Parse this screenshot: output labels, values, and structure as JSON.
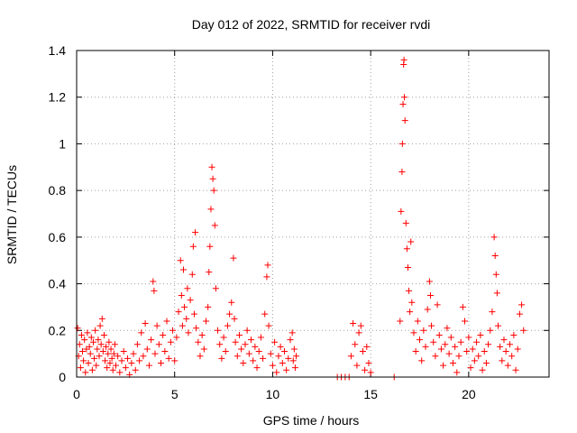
{
  "chart_data": {
    "type": "scatter",
    "title": "Day 012 of 2022, SRMTID for receiver rvdi",
    "xlabel": "GPS time / hours",
    "ylabel": "SRMTID / TECUs",
    "xlim": [
      0,
      24.1
    ],
    "ylim": [
      0,
      1.4
    ],
    "xticks": [
      0,
      5,
      10,
      15,
      20
    ],
    "xtick_labels": [
      "0",
      "5",
      "10",
      "15",
      "20"
    ],
    "yticks": [
      0,
      0.2,
      0.4,
      0.6,
      0.8,
      1,
      1.2,
      1.4
    ],
    "ytick_labels": [
      "0",
      "0.2",
      "0.4",
      "0.6",
      "0.8",
      "1",
      "1.2",
      "1.4"
    ],
    "grid": true,
    "marker": "+",
    "color": "#ff0000",
    "series": [
      {
        "name": "SRMTID",
        "points": [
          [
            0.05,
            0.21
          ],
          [
            0.1,
            0.09
          ],
          [
            0.15,
            0.14
          ],
          [
            0.2,
            0.04
          ],
          [
            0.25,
            0.18
          ],
          [
            0.3,
            0.11
          ],
          [
            0.35,
            0.07
          ],
          [
            0.4,
            0.16
          ],
          [
            0.45,
            0.02
          ],
          [
            0.5,
            0.12
          ],
          [
            0.55,
            0.19
          ],
          [
            0.6,
            0.06
          ],
          [
            0.65,
            0.13
          ],
          [
            0.7,
            0.1
          ],
          [
            0.75,
            0.17
          ],
          [
            0.8,
            0.03
          ],
          [
            0.85,
            0.15
          ],
          [
            0.9,
            0.08
          ],
          [
            0.95,
            0.2
          ],
          [
            1.0,
            0.05
          ],
          [
            1.05,
            0.12
          ],
          [
            1.1,
            0.16
          ],
          [
            1.15,
            0.09
          ],
          [
            1.2,
            0.22
          ],
          [
            1.25,
            0.14
          ],
          [
            1.3,
            0.25
          ],
          [
            1.35,
            0.11
          ],
          [
            1.4,
            0.18
          ],
          [
            1.45,
            0.07
          ],
          [
            1.5,
            0.13
          ],
          [
            1.55,
            0.04
          ],
          [
            1.6,
            0.1
          ],
          [
            1.65,
            0.15
          ],
          [
            1.7,
            0.06
          ],
          [
            1.75,
            0.12
          ],
          [
            1.8,
            0.08
          ],
          [
            1.85,
            0.03
          ],
          [
            1.9,
            0.1
          ],
          [
            1.95,
            0.14
          ],
          [
            2.0,
            0.05
          ],
          [
            2.1,
            0.09
          ],
          [
            2.2,
            0.02
          ],
          [
            2.3,
            0.07
          ],
          [
            2.4,
            0.11
          ],
          [
            2.5,
            0.04
          ],
          [
            2.6,
            0.08
          ],
          [
            2.7,
            0.01
          ],
          [
            2.8,
            0.06
          ],
          [
            2.9,
            0.1
          ],
          [
            3.0,
            0.03
          ],
          [
            3.1,
            0.14
          ],
          [
            3.2,
            0.07
          ],
          [
            3.3,
            0.19
          ],
          [
            3.4,
            0.09
          ],
          [
            3.5,
            0.23
          ],
          [
            3.6,
            0.12
          ],
          [
            3.7,
            0.05
          ],
          [
            3.8,
            0.16
          ],
          [
            3.9,
            0.41
          ],
          [
            3.95,
            0.37
          ],
          [
            4.0,
            0.1
          ],
          [
            4.1,
            0.22
          ],
          [
            4.2,
            0.14
          ],
          [
            4.3,
            0.06
          ],
          [
            4.4,
            0.18
          ],
          [
            4.5,
            0.11
          ],
          [
            4.6,
            0.24
          ],
          [
            4.7,
            0.08
          ],
          [
            4.8,
            0.15
          ],
          [
            4.9,
            0.2
          ],
          [
            5.0,
            0.07
          ],
          [
            5.1,
            0.17
          ],
          [
            5.2,
            0.28
          ],
          [
            5.3,
            0.5
          ],
          [
            5.35,
            0.35
          ],
          [
            5.4,
            0.22
          ],
          [
            5.45,
            0.46
          ],
          [
            5.5,
            0.3
          ],
          [
            5.6,
            0.25
          ],
          [
            5.65,
            0.38
          ],
          [
            5.7,
            0.19
          ],
          [
            5.8,
            0.33
          ],
          [
            5.9,
            0.44
          ],
          [
            5.95,
            0.56
          ],
          [
            6.0,
            0.27
          ],
          [
            6.05,
            0.62
          ],
          [
            6.1,
            0.21
          ],
          [
            6.2,
            0.15
          ],
          [
            6.3,
            0.09
          ],
          [
            6.4,
            0.18
          ],
          [
            6.5,
            0.12
          ],
          [
            6.6,
            0.24
          ],
          [
            6.7,
            0.3
          ],
          [
            6.75,
            0.45
          ],
          [
            6.8,
            0.56
          ],
          [
            6.85,
            0.72
          ],
          [
            6.9,
            0.9
          ],
          [
            6.95,
            0.85
          ],
          [
            7.0,
            0.8
          ],
          [
            7.05,
            0.65
          ],
          [
            7.1,
            0.38
          ],
          [
            7.2,
            0.2
          ],
          [
            7.3,
            0.14
          ],
          [
            7.4,
            0.08
          ],
          [
            7.5,
            0.17
          ],
          [
            7.6,
            0.11
          ],
          [
            7.7,
            0.22
          ],
          [
            7.8,
            0.27
          ],
          [
            7.9,
            0.32
          ],
          [
            8.0,
            0.51
          ],
          [
            8.05,
            0.25
          ],
          [
            8.1,
            0.15
          ],
          [
            8.2,
            0.09
          ],
          [
            8.3,
            0.18
          ],
          [
            8.4,
            0.12
          ],
          [
            8.5,
            0.06
          ],
          [
            8.6,
            0.14
          ],
          [
            8.7,
            0.2
          ],
          [
            8.8,
            0.1
          ],
          [
            8.9,
            0.16
          ],
          [
            9.0,
            0.07
          ],
          [
            9.1,
            0.13
          ],
          [
            9.2,
            0.04
          ],
          [
            9.3,
            0.11
          ],
          [
            9.4,
            0.17
          ],
          [
            9.5,
            0.08
          ],
          [
            9.6,
            0.27
          ],
          [
            9.7,
            0.43
          ],
          [
            9.75,
            0.48
          ],
          [
            9.8,
            0.22
          ],
          [
            9.9,
            0.1
          ],
          [
            10.0,
            0.05
          ],
          [
            10.1,
            0.15
          ],
          [
            10.2,
            0.02
          ],
          [
            10.3,
            0.09
          ],
          [
            10.4,
            0.13
          ],
          [
            10.5,
            0.06
          ],
          [
            10.6,
            0.11
          ],
          [
            10.7,
            0.03
          ],
          [
            10.8,
            0.08
          ],
          [
            10.9,
            0.16
          ],
          [
            11.0,
            0.19
          ],
          [
            11.05,
            0.07
          ],
          [
            11.1,
            0.12
          ],
          [
            11.15,
            0.04
          ],
          [
            11.2,
            0.09
          ],
          [
            13.3,
            0.0
          ],
          [
            13.5,
            0.0
          ],
          [
            13.7,
            0.0
          ],
          [
            13.9,
            0.0
          ],
          [
            14.0,
            0.09
          ],
          [
            14.1,
            0.23
          ],
          [
            14.2,
            0.14
          ],
          [
            14.3,
            0.05
          ],
          [
            14.4,
            0.19
          ],
          [
            14.5,
            0.22
          ],
          [
            14.6,
            0.11
          ],
          [
            14.7,
            0.03
          ],
          [
            14.8,
            0.13
          ],
          [
            14.9,
            0.06
          ],
          [
            15.0,
            0.02
          ],
          [
            16.2,
            0.0
          ],
          [
            16.5,
            0.24
          ],
          [
            16.55,
            0.71
          ],
          [
            16.6,
            0.88
          ],
          [
            16.62,
            1.0
          ],
          [
            16.65,
            1.17
          ],
          [
            16.68,
            1.34
          ],
          [
            16.7,
            1.36
          ],
          [
            16.72,
            1.2
          ],
          [
            16.75,
            1.1
          ],
          [
            16.8,
            0.66
          ],
          [
            16.85,
            0.55
          ],
          [
            16.9,
            0.47
          ],
          [
            16.95,
            0.37
          ],
          [
            17.0,
            0.28
          ],
          [
            17.05,
            0.58
          ],
          [
            17.1,
            0.32
          ],
          [
            17.2,
            0.19
          ],
          [
            17.3,
            0.11
          ],
          [
            17.4,
            0.24
          ],
          [
            17.5,
            0.16
          ],
          [
            17.6,
            0.07
          ],
          [
            17.7,
            0.2
          ],
          [
            17.8,
            0.13
          ],
          [
            17.9,
            0.29
          ],
          [
            18.0,
            0.41
          ],
          [
            18.05,
            0.35
          ],
          [
            18.1,
            0.22
          ],
          [
            18.2,
            0.15
          ],
          [
            18.3,
            0.09
          ],
          [
            18.4,
            0.31
          ],
          [
            18.5,
            0.18
          ],
          [
            18.6,
            0.12
          ],
          [
            18.7,
            0.05
          ],
          [
            18.8,
            0.14
          ],
          [
            18.9,
            0.21
          ],
          [
            19.0,
            0.1
          ],
          [
            19.1,
            0.17
          ],
          [
            19.2,
            0.06
          ],
          [
            19.3,
            0.13
          ],
          [
            19.4,
            0.02
          ],
          [
            19.5,
            0.09
          ],
          [
            19.6,
            0.15
          ],
          [
            19.7,
            0.3
          ],
          [
            19.8,
            0.24
          ],
          [
            19.9,
            0.11
          ],
          [
            20.0,
            0.17
          ],
          [
            20.1,
            0.04
          ],
          [
            20.2,
            0.12
          ],
          [
            20.3,
            0.07
          ],
          [
            20.4,
            0.15
          ],
          [
            20.5,
            0.09
          ],
          [
            20.6,
            0.18
          ],
          [
            20.7,
            0.03
          ],
          [
            20.8,
            0.11
          ],
          [
            20.9,
            0.06
          ],
          [
            21.0,
            0.14
          ],
          [
            21.1,
            0.2
          ],
          [
            21.2,
            0.28
          ],
          [
            21.3,
            0.6
          ],
          [
            21.35,
            0.52
          ],
          [
            21.4,
            0.44
          ],
          [
            21.45,
            0.36
          ],
          [
            21.5,
            0.22
          ],
          [
            21.6,
            0.13
          ],
          [
            21.7,
            0.07
          ],
          [
            21.8,
            0.16
          ],
          [
            21.9,
            0.11
          ],
          [
            22.0,
            0.05
          ],
          [
            22.1,
            0.14
          ],
          [
            22.2,
            0.09
          ],
          [
            22.3,
            0.18
          ],
          [
            22.4,
            0.03
          ],
          [
            22.5,
            0.12
          ],
          [
            22.6,
            0.27
          ],
          [
            22.7,
            0.31
          ],
          [
            22.8,
            0.2
          ]
        ]
      }
    ]
  }
}
